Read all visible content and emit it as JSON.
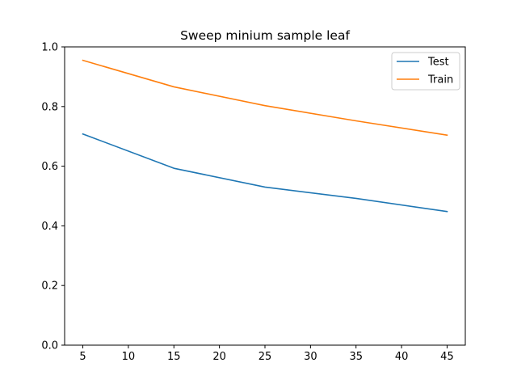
{
  "chart_data": {
    "type": "line",
    "title": "Sweep minium sample leaf",
    "xlabel": "",
    "ylabel": "",
    "x": [
      5,
      15,
      25,
      35,
      45
    ],
    "xlim": [
      3.0,
      47.0
    ],
    "ylim": [
      0.0,
      1.0
    ],
    "xticks": [
      5,
      10,
      15,
      20,
      25,
      30,
      35,
      40,
      45
    ],
    "xtick_labels": [
      "5",
      "10",
      "15",
      "20",
      "25",
      "30",
      "35",
      "40",
      "45"
    ],
    "yticks": [
      0.0,
      0.2,
      0.4,
      0.6,
      0.8,
      1.0
    ],
    "ytick_labels": [
      "0.0",
      "0.2",
      "0.4",
      "0.6",
      "0.8",
      "1.0"
    ],
    "grid": false,
    "legend_position": "top-right",
    "series": [
      {
        "name": "Test",
        "color": "#1f77b4",
        "values": [
          0.708,
          0.593,
          0.53,
          0.492,
          0.448
        ]
      },
      {
        "name": "Train",
        "color": "#ff7f0e",
        "values": [
          0.955,
          0.866,
          0.803,
          0.752,
          0.704
        ]
      }
    ]
  }
}
